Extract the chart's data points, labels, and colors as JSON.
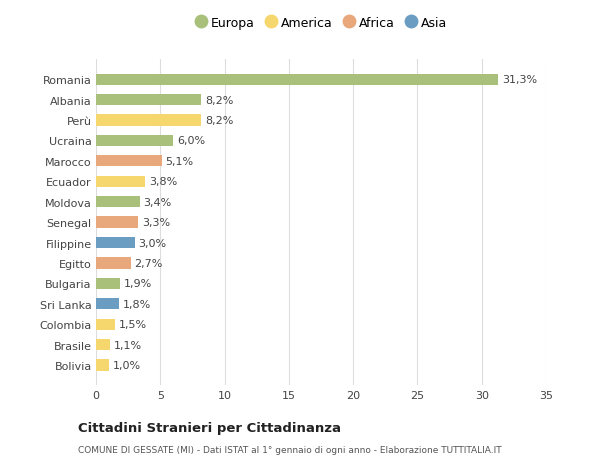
{
  "categories": [
    "Bolivia",
    "Brasile",
    "Colombia",
    "Sri Lanka",
    "Bulgaria",
    "Egitto",
    "Filippine",
    "Senegal",
    "Moldova",
    "Ecuador",
    "Marocco",
    "Ucraina",
    "Perù",
    "Albania",
    "Romania"
  ],
  "values": [
    1.0,
    1.1,
    1.5,
    1.8,
    1.9,
    2.7,
    3.0,
    3.3,
    3.4,
    3.8,
    5.1,
    6.0,
    8.2,
    8.2,
    31.3
  ],
  "colors": [
    "#f5d76e",
    "#f5d76e",
    "#f5d76e",
    "#6b9dc2",
    "#a8c07a",
    "#e8a87c",
    "#6b9dc2",
    "#e8a87c",
    "#a8c07a",
    "#f5d76e",
    "#e8a87c",
    "#a8c07a",
    "#f5d76e",
    "#a8c07a",
    "#a8c07a"
  ],
  "labels": [
    "1,0%",
    "1,1%",
    "1,5%",
    "1,8%",
    "1,9%",
    "2,7%",
    "3,0%",
    "3,3%",
    "3,4%",
    "3,8%",
    "5,1%",
    "6,0%",
    "8,2%",
    "8,2%",
    "31,3%"
  ],
  "legend_labels": [
    "Europa",
    "America",
    "Africa",
    "Asia"
  ],
  "legend_colors": [
    "#a8c07a",
    "#f5d76e",
    "#e8a87c",
    "#6b9dc2"
  ],
  "xlim": [
    0,
    35
  ],
  "xticks": [
    0,
    5,
    10,
    15,
    20,
    25,
    30,
    35
  ],
  "title": "Cittadini Stranieri per Cittadinanza",
  "subtitle": "COMUNE DI GESSATE (MI) - Dati ISTAT al 1° gennaio di ogni anno - Elaborazione TUTTITALIA.IT",
  "bg_color": "#ffffff",
  "bar_height": 0.55,
  "label_fontsize": 8,
  "tick_fontsize": 8,
  "legend_fontsize": 9
}
